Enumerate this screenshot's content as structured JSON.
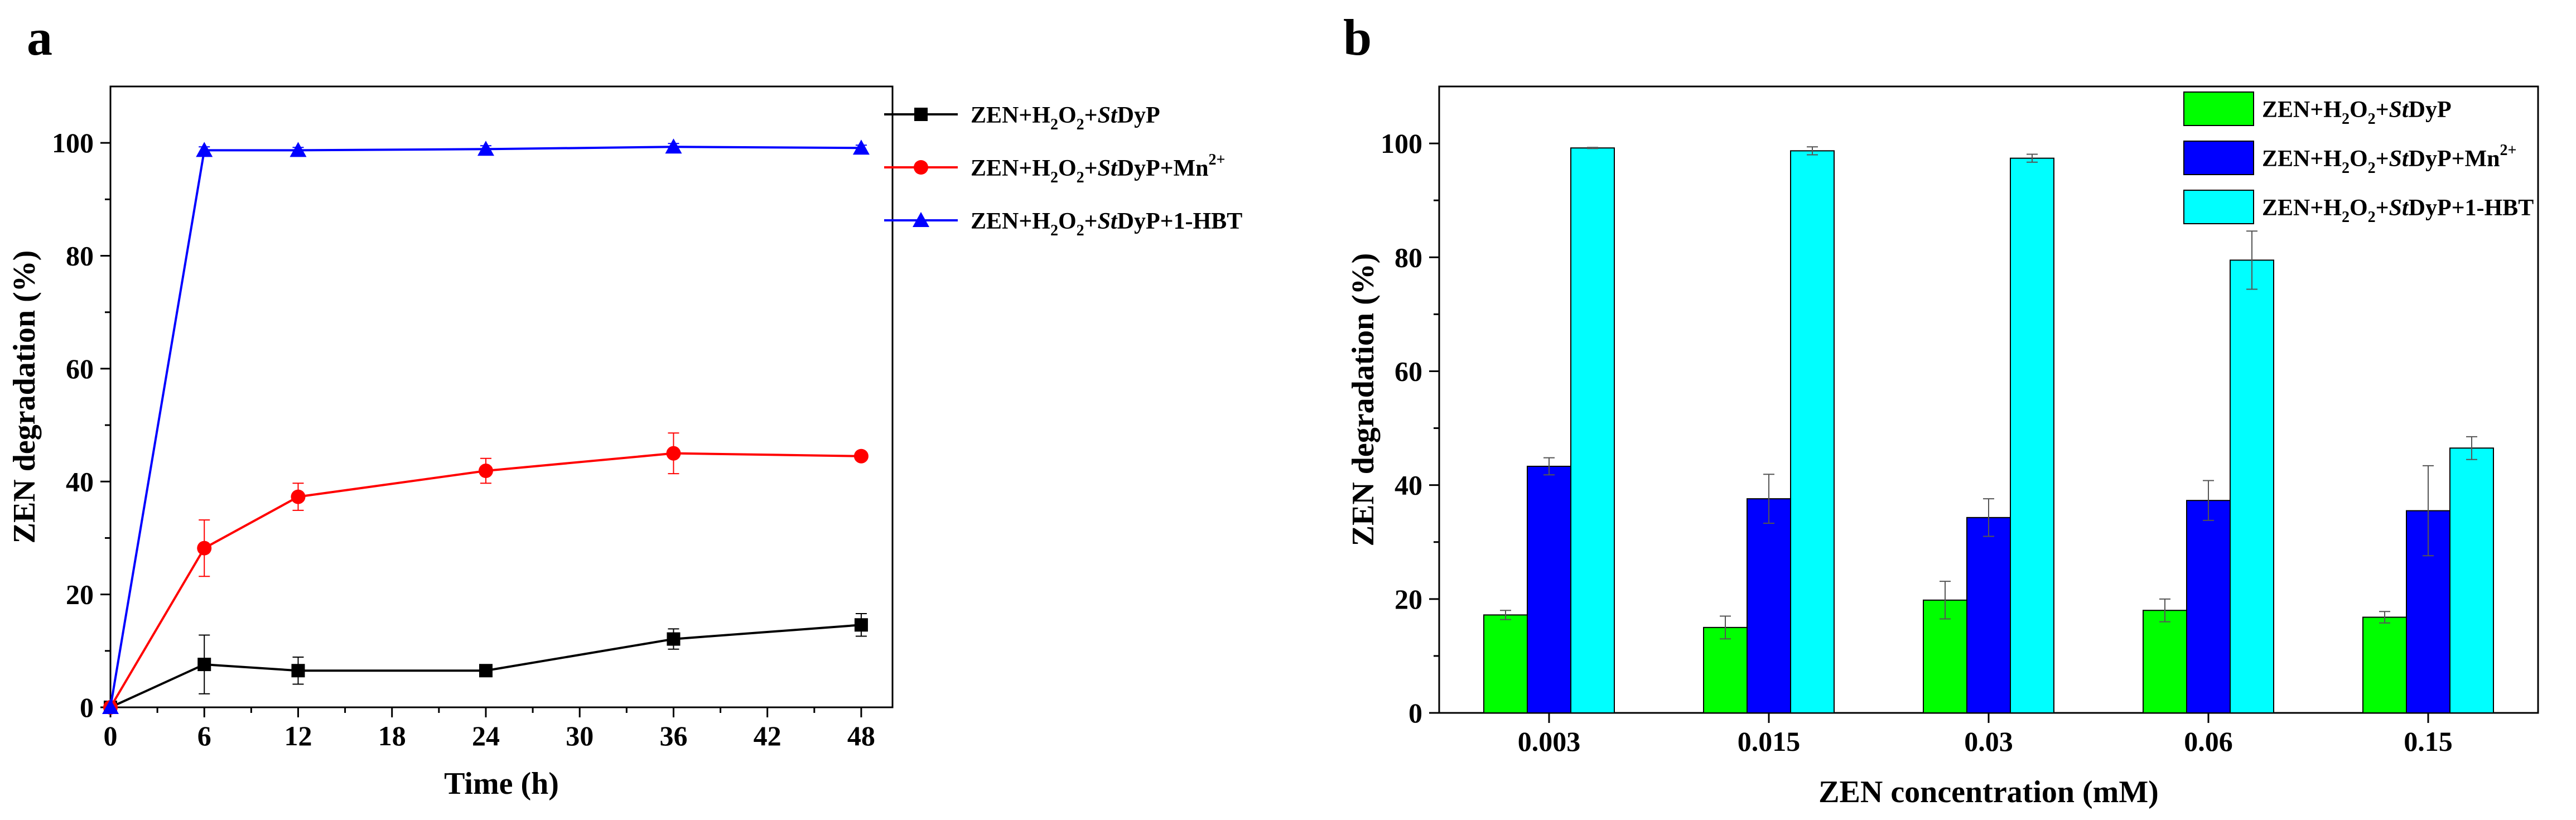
{
  "chart_data": [
    {
      "panel": "a",
      "type": "line",
      "xlabel": "Time (h)",
      "ylabel": "ZEN degradation (%)",
      "xlim": [
        0,
        50
      ],
      "ylim": [
        0,
        110
      ],
      "xticks": [
        "0",
        "6",
        "12",
        "18",
        "24",
        "30",
        "36",
        "42",
        "48"
      ],
      "yticks": [
        "0",
        "20",
        "40",
        "60",
        "80",
        "100"
      ],
      "x": [
        0,
        6,
        12,
        24,
        36,
        48
      ],
      "series": [
        {
          "name": "ZEN+H2O2+StDyP",
          "legend": {
            "pre": "ZEN+H",
            "s1": "2",
            "mid": "O",
            "s2": "2",
            "plus": "+",
            "italic": "St",
            "post": "DyP",
            "sup": ""
          },
          "color": "#000000",
          "marker": "square",
          "values": [
            0,
            7.6,
            6.5,
            6.5,
            12.1,
            14.6
          ],
          "errors": [
            0,
            5.2,
            2.4,
            0.8,
            1.8,
            2.0
          ]
        },
        {
          "name": "ZEN+H2O2+StDyP+Mn2+",
          "legend": {
            "pre": "ZEN+H",
            "s1": "2",
            "mid": "O",
            "s2": "2",
            "plus": "+",
            "italic": "St",
            "post": "DyP+Mn",
            "sup": "2+"
          },
          "color": "#ff0000",
          "marker": "circle",
          "values": [
            0,
            28.2,
            37.3,
            41.9,
            45.0,
            44.5
          ],
          "errors": [
            0,
            5.0,
            2.4,
            2.2,
            3.6,
            0.5
          ]
        },
        {
          "name": "ZEN+H2O2+StDyP+1-HBT",
          "legend": {
            "pre": "ZEN+H",
            "s1": "2",
            "mid": "O",
            "s2": "2",
            "plus": "+",
            "italic": "St",
            "post": "DyP+1-HBT",
            "sup": ""
          },
          "color": "#0000ff",
          "marker": "triangle",
          "values": [
            0,
            98.7,
            98.7,
            98.9,
            99.3,
            99.1
          ],
          "errors": [
            0,
            0.6,
            0.5,
            0.6,
            0.6,
            0.5
          ]
        }
      ]
    },
    {
      "panel": "b",
      "type": "bar",
      "xlabel": "ZEN concentration (mM)",
      "ylabel": "ZEN degradation (%)",
      "ylim": [
        0,
        110
      ],
      "yticks": [
        "0",
        "20",
        "40",
        "60",
        "80",
        "100"
      ],
      "categories": [
        "0.003",
        "0.015",
        "0.03",
        "0.06",
        "0.15"
      ],
      "series": [
        {
          "name": "ZEN+H2O2+StDyP",
          "legend": {
            "pre": "ZEN+H",
            "s1": "2",
            "mid": "O",
            "s2": "2",
            "plus": "+",
            "italic": "St",
            "post": "DyP",
            "sup": ""
          },
          "color": "#00ff00",
          "values": [
            17.2,
            15.0,
            19.8,
            18.0,
            16.8
          ],
          "errors": [
            0.8,
            2.0,
            3.3,
            2.0,
            1.0
          ]
        },
        {
          "name": "ZEN+H2O2+StDyP+Mn2+",
          "legend": {
            "pre": "ZEN+H",
            "s1": "2",
            "mid": "O",
            "s2": "2",
            "plus": "+",
            "italic": "St",
            "post": "DyP+Mn",
            "sup": "2+"
          },
          "color": "#0000ff",
          "values": [
            43.3,
            37.6,
            34.3,
            37.3,
            35.5
          ],
          "errors": [
            1.5,
            4.3,
            3.3,
            3.5,
            7.9
          ]
        },
        {
          "name": "ZEN+H2O2+StDyP+1-HBT",
          "legend": {
            "pre": "ZEN+H",
            "s1": "2",
            "mid": "O",
            "s2": "2",
            "plus": "+",
            "italic": "St",
            "post": "DyP+1-HBT",
            "sup": ""
          },
          "color": "#00ffff",
          "values": [
            99.2,
            98.7,
            97.4,
            79.5,
            46.5
          ],
          "errors": [
            0.1,
            0.7,
            0.7,
            5.1,
            2.0
          ]
        }
      ]
    }
  ]
}
